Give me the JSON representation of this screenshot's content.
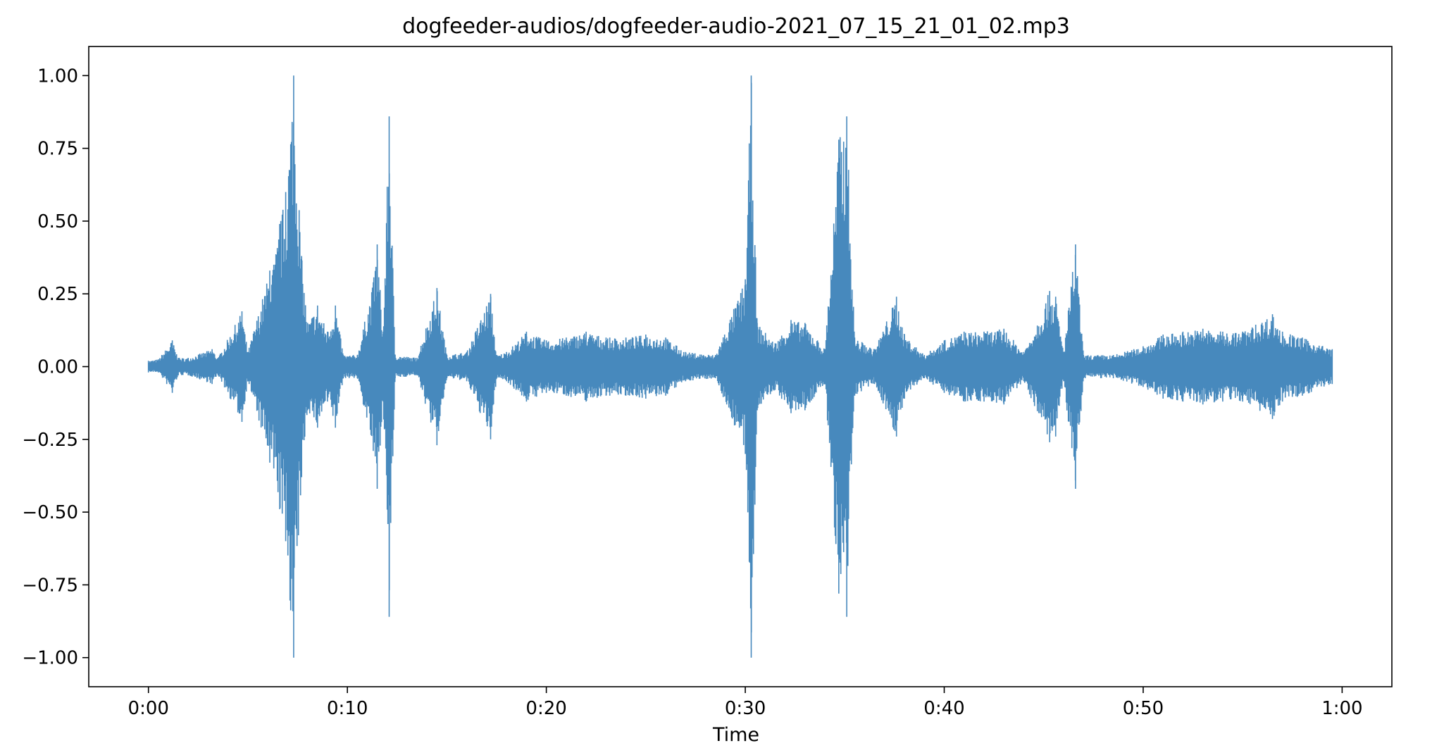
{
  "chart_data": {
    "type": "line",
    "title": "dogfeeder-audios/dogfeeder-audio-2021_07_15_21_01_02.mp3",
    "xlabel": "Time",
    "ylabel": "",
    "xlim": [
      -3,
      62.5
    ],
    "ylim": [
      -1.1,
      1.1
    ],
    "x_ticks": [
      {
        "value": 0,
        "label": "0:00"
      },
      {
        "value": 10,
        "label": "0:10"
      },
      {
        "value": 20,
        "label": "0:20"
      },
      {
        "value": 30,
        "label": "0:30"
      },
      {
        "value": 40,
        "label": "0:40"
      },
      {
        "value": 50,
        "label": "0:50"
      },
      {
        "value": 60,
        "label": "1:00"
      }
    ],
    "y_ticks": [
      {
        "value": 1.0,
        "label": "1.00"
      },
      {
        "value": 0.75,
        "label": "0.75"
      },
      {
        "value": 0.5,
        "label": "0.50"
      },
      {
        "value": 0.25,
        "label": "0.25"
      },
      {
        "value": 0.0,
        "label": "0.00"
      },
      {
        "value": -0.25,
        "label": "−0.25"
      },
      {
        "value": -0.5,
        "label": "−0.50"
      },
      {
        "value": -0.75,
        "label": "−0.75"
      },
      {
        "value": -1.0,
        "label": "−1.00"
      }
    ],
    "grid": false,
    "series": [
      {
        "color": "#4789bd",
        "envelope_points": [
          [
            0.0,
            0.02,
            -0.02
          ],
          [
            0.5,
            0.025,
            -0.02
          ],
          [
            1.2,
            0.09,
            -0.09
          ],
          [
            1.5,
            0.03,
            -0.03
          ],
          [
            2.0,
            0.03,
            -0.03
          ],
          [
            3.2,
            0.06,
            -0.06
          ],
          [
            3.5,
            0.03,
            -0.03
          ],
          [
            4.7,
            0.19,
            -0.19
          ],
          [
            5.0,
            0.05,
            -0.05
          ],
          [
            6.1,
            0.33,
            -0.33
          ],
          [
            6.3,
            0.35,
            -0.35
          ],
          [
            6.6,
            0.49,
            -0.49
          ],
          [
            6.9,
            0.6,
            -0.6
          ],
          [
            7.3,
            1.0,
            -1.0
          ],
          [
            7.7,
            0.38,
            -0.38
          ],
          [
            8.0,
            0.15,
            -0.15
          ],
          [
            8.5,
            0.21,
            -0.21
          ],
          [
            9.0,
            0.12,
            -0.12
          ],
          [
            9.4,
            0.21,
            -0.21
          ],
          [
            9.8,
            0.04,
            -0.04
          ],
          [
            10.5,
            0.04,
            -0.04
          ],
          [
            11.3,
            0.29,
            -0.29
          ],
          [
            11.5,
            0.42,
            -0.42
          ],
          [
            11.8,
            0.12,
            -0.12
          ],
          [
            12.1,
            0.86,
            -0.86
          ],
          [
            12.4,
            0.04,
            -0.04
          ],
          [
            13.5,
            0.03,
            -0.03
          ],
          [
            14.5,
            0.27,
            -0.27
          ],
          [
            15.0,
            0.04,
            -0.04
          ],
          [
            16.0,
            0.05,
            -0.05
          ],
          [
            17.2,
            0.25,
            -0.25
          ],
          [
            17.5,
            0.04,
            -0.04
          ],
          [
            18.0,
            0.05,
            -0.05
          ],
          [
            19.0,
            0.12,
            -0.12
          ],
          [
            20.0,
            0.09,
            -0.09
          ],
          [
            21.0,
            0.1,
            -0.1
          ],
          [
            22.0,
            0.12,
            -0.12
          ],
          [
            23.0,
            0.1,
            -0.1
          ],
          [
            24.0,
            0.1,
            -0.1
          ],
          [
            25.0,
            0.11,
            -0.11
          ],
          [
            26.0,
            0.1,
            -0.1
          ],
          [
            27.0,
            0.05,
            -0.05
          ],
          [
            28.5,
            0.04,
            -0.04
          ],
          [
            30.0,
            0.3,
            -0.3
          ],
          [
            30.3,
            1.0,
            -1.0
          ],
          [
            30.6,
            0.15,
            -0.15
          ],
          [
            31.5,
            0.08,
            -0.08
          ],
          [
            32.3,
            0.16,
            -0.16
          ],
          [
            33.0,
            0.15,
            -0.15
          ],
          [
            34.0,
            0.06,
            -0.06
          ],
          [
            34.7,
            0.78,
            -0.78
          ],
          [
            35.1,
            0.86,
            -0.86
          ],
          [
            35.5,
            0.1,
            -0.1
          ],
          [
            36.5,
            0.06,
            -0.06
          ],
          [
            37.6,
            0.24,
            -0.24
          ],
          [
            38.0,
            0.11,
            -0.11
          ],
          [
            39.0,
            0.04,
            -0.04
          ],
          [
            40.0,
            0.09,
            -0.09
          ],
          [
            41.0,
            0.12,
            -0.12
          ],
          [
            42.0,
            0.12,
            -0.12
          ],
          [
            43.0,
            0.13,
            -0.13
          ],
          [
            44.0,
            0.05,
            -0.05
          ],
          [
            45.3,
            0.26,
            -0.26
          ],
          [
            45.6,
            0.24,
            -0.24
          ],
          [
            46.0,
            0.05,
            -0.05
          ],
          [
            46.6,
            0.42,
            -0.42
          ],
          [
            47.0,
            0.04,
            -0.04
          ],
          [
            48.5,
            0.04,
            -0.04
          ],
          [
            50.0,
            0.07,
            -0.07
          ],
          [
            51.0,
            0.11,
            -0.11
          ],
          [
            52.0,
            0.12,
            -0.12
          ],
          [
            53.0,
            0.13,
            -0.13
          ],
          [
            54.0,
            0.12,
            -0.12
          ],
          [
            55.0,
            0.12,
            -0.12
          ],
          [
            56.5,
            0.18,
            -0.18
          ],
          [
            57.0,
            0.12,
            -0.12
          ],
          [
            58.0,
            0.1,
            -0.1
          ],
          [
            59.5,
            0.06,
            -0.06
          ]
        ]
      }
    ]
  }
}
